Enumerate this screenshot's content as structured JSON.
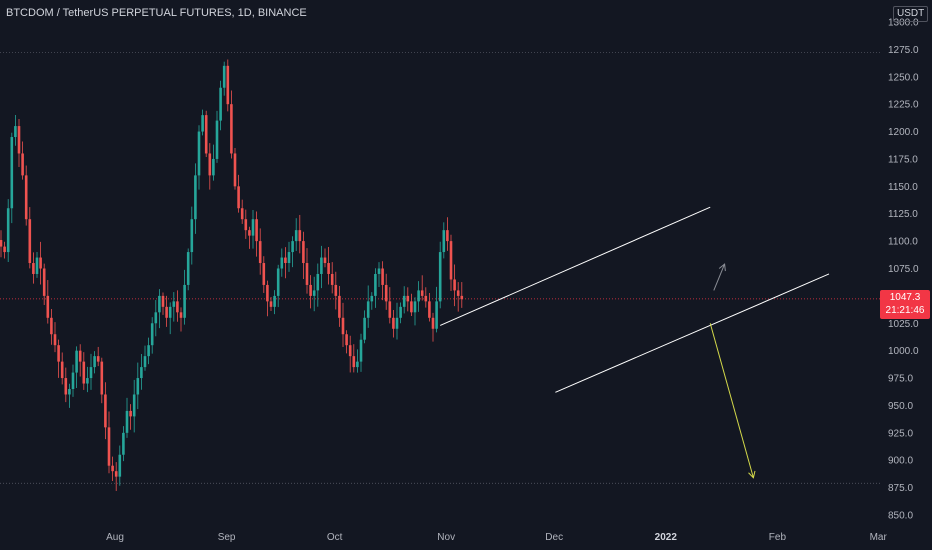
{
  "header": {
    "title": "BTCDOM / TetherUS PERPETUAL FUTURES, 1D, BINANCE",
    "currency": "USDT"
  },
  "price_badge": {
    "price": "1047.3",
    "countdown": "21:21:46"
  },
  "colors": {
    "background": "#131722",
    "up": "#26a69a",
    "down": "#ef5350",
    "price_line": "#f23645",
    "channel": "#ffffff",
    "arrow_down": "#d4d94a",
    "arrow_up": "#8a8d95"
  },
  "chart_data": {
    "type": "candlestick",
    "title": "BTCDOM / TetherUS PERPETUAL FUTURES, 1D, BINANCE",
    "x_axis": {
      "labels": [
        "Aug",
        "Sep",
        "Oct",
        "Nov",
        "Dec",
        "2022",
        "Feb",
        "Mar"
      ],
      "bold": [
        "2022"
      ]
    },
    "y_axis": {
      "ticks": [
        "850.0",
        "875.0",
        "900.0",
        "925.0",
        "950.0",
        "975.0",
        "1000.0",
        "1025.0",
        "1050.0",
        "1075.0",
        "1100.0",
        "1125.0",
        "1150.0",
        "1175.0",
        "1200.0",
        "1225.0",
        "1250.0",
        "1275.0",
        "1300.0"
      ],
      "range": [
        840,
        1300
      ],
      "position": "right"
    },
    "last_price": 1047.3,
    "horizontal_levels": [
      1272,
      879
    ],
    "price_path_daily_closes": [
      1095,
      1090,
      1130,
      1195,
      1205,
      1180,
      1160,
      1120,
      1080,
      1070,
      1085,
      1075,
      1050,
      1030,
      1015,
      1005,
      990,
      975,
      960,
      965,
      980,
      1000,
      990,
      970,
      975,
      985,
      995,
      990,
      960,
      930,
      895,
      890,
      885,
      905,
      925,
      945,
      940,
      960,
      975,
      985,
      995,
      1005,
      1025,
      1035,
      1050,
      1040,
      1030,
      1040,
      1045,
      1035,
      1030,
      1060,
      1090,
      1120,
      1160,
      1200,
      1215,
      1180,
      1160,
      1175,
      1210,
      1240,
      1260,
      1225,
      1180,
      1150,
      1130,
      1120,
      1110,
      1105,
      1120,
      1100,
      1080,
      1060,
      1045,
      1040,
      1050,
      1075,
      1085,
      1080,
      1090,
      1100,
      1110,
      1100,
      1080,
      1060,
      1050,
      1055,
      1070,
      1085,
      1080,
      1070,
      1060,
      1050,
      1030,
      1015,
      1005,
      995,
      985,
      990,
      1010,
      1030,
      1045,
      1050,
      1070,
      1075,
      1060,
      1045,
      1030,
      1020,
      1030,
      1040,
      1050,
      1045,
      1035,
      1045,
      1055,
      1050,
      1045,
      1030,
      1020,
      1045,
      1090,
      1110,
      1100,
      1065,
      1055,
      1050,
      1047
    ],
    "trendlines": [
      {
        "name": "channel-upper",
        "points": [
          [
            "2021-11-01",
            1023
          ],
          [
            "2022-01-15",
            1131
          ]
        ]
      },
      {
        "name": "channel-lower",
        "points": [
          [
            "2021-12-03",
            962
          ],
          [
            "2022-02-17",
            1070
          ]
        ]
      }
    ],
    "arrows": [
      {
        "name": "projection-down",
        "from": [
          "2022-01-15",
          1025
        ],
        "to": [
          "2022-01-27",
          884
        ]
      },
      {
        "name": "projection-up",
        "from": [
          "2022-01-16",
          1055
        ],
        "to": [
          "2022-01-19",
          1079
        ]
      }
    ]
  }
}
